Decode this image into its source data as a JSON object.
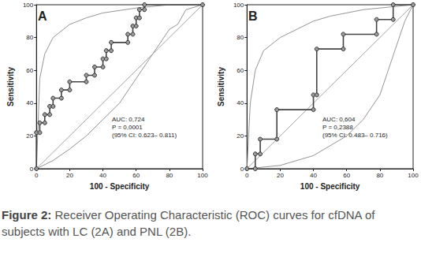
{
  "chart_data": [
    {
      "type": "line",
      "panel_label": "A",
      "x_label": "100 - Specificity",
      "y_label": "Sensitivity",
      "xlim": [
        0,
        100
      ],
      "ylim": [
        0,
        100
      ],
      "xticks": [
        0,
        20,
        40,
        60,
        80,
        100
      ],
      "yticks": [
        0,
        20,
        40,
        60,
        80,
        100
      ],
      "grid": false,
      "annotations": [
        "AUC: 0,724",
        "P = 0,0001",
        "(95% CI: 0.623– 0.811)"
      ],
      "series": [
        {
          "color": "#444444",
          "marker": "circle",
          "line_style": "solid",
          "x": [
            0,
            0,
            2,
            2,
            5,
            5,
            8,
            8,
            10,
            10,
            15,
            15,
            20,
            20,
            30,
            30,
            35,
            35,
            40,
            40,
            42,
            42,
            45,
            45,
            55,
            55,
            58,
            58,
            60,
            60,
            62,
            62,
            65,
            65,
            100
          ],
          "values": [
            0,
            22,
            22,
            28,
            28,
            33,
            33,
            38,
            38,
            43,
            43,
            48,
            48,
            53,
            53,
            57,
            57,
            62,
            62,
            67,
            67,
            72,
            72,
            77,
            77,
            82,
            82,
            87,
            87,
            92,
            92,
            97,
            97,
            100,
            100
          ]
        },
        {
          "color": "#888888",
          "marker": "none",
          "line_style": "solid",
          "x": [
            0,
            2,
            5,
            10,
            20,
            30,
            40,
            60,
            80,
            100
          ],
          "values": [
            0,
            55,
            70,
            80,
            88,
            92,
            95,
            98,
            100,
            100
          ]
        },
        {
          "color": "#888888",
          "marker": "none",
          "line_style": "solid",
          "x": [
            0,
            10,
            20,
            30,
            40,
            50,
            60,
            70,
            80,
            85,
            90,
            100
          ],
          "values": [
            0,
            5,
            12,
            20,
            30,
            40,
            55,
            70,
            85,
            88,
            97,
            100
          ]
        },
        {
          "color": "#999999",
          "marker": "none",
          "line_style": "solid",
          "x": [
            0,
            100
          ],
          "values": [
            0,
            100
          ]
        }
      ]
    },
    {
      "type": "line",
      "panel_label": "B",
      "x_label": "100 - Specificity",
      "y_label": "Sensitivity",
      "xlim": [
        0,
        100
      ],
      "ylim": [
        0,
        100
      ],
      "xticks": [
        0,
        20,
        40,
        60,
        80,
        100
      ],
      "yticks": [
        0,
        20,
        40,
        60,
        80,
        100
      ],
      "grid": false,
      "annotations": [
        "AUC: 0,604",
        "P = 0,2388",
        "(95% CI: 0.483– 0.716)"
      ],
      "series": [
        {
          "color": "#444444",
          "marker": "circle",
          "line_style": "solid",
          "x": [
            0,
            5,
            5,
            8,
            8,
            18,
            18,
            40,
            40,
            42,
            42,
            58,
            58,
            78,
            78,
            88,
            88,
            100
          ],
          "values": [
            0,
            0,
            9,
            9,
            18,
            18,
            36,
            36,
            45,
            45,
            73,
            73,
            82,
            82,
            91,
            91,
            100,
            100
          ]
        },
        {
          "color": "#888888",
          "marker": "none",
          "line_style": "solid",
          "x": [
            0,
            2,
            5,
            10,
            20,
            30,
            40,
            50,
            70,
            100
          ],
          "values": [
            0,
            40,
            60,
            72,
            80,
            85,
            90,
            93,
            97,
            100
          ]
        },
        {
          "color": "#888888",
          "marker": "none",
          "line_style": "solid",
          "x": [
            0,
            20,
            40,
            60,
            70,
            80,
            85,
            90,
            95,
            100
          ],
          "values": [
            0,
            2,
            8,
            20,
            30,
            45,
            60,
            75,
            90,
            100
          ]
        },
        {
          "color": "#999999",
          "marker": "none",
          "line_style": "solid",
          "x": [
            0,
            100
          ],
          "values": [
            0,
            100
          ]
        }
      ]
    }
  ],
  "caption": {
    "label": "Figure 2:",
    "text": "Receiver Operating Characteristic (ROC) curves for cfDNA of subjects with LC (2A) and PNL (2B)."
  }
}
